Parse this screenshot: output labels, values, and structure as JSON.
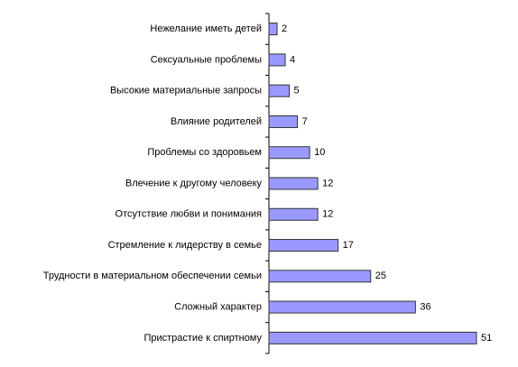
{
  "chart_data": {
    "type": "bar",
    "orientation": "horizontal",
    "categories": [
      "Нежелание иметь детей",
      "Сексуальные проблемы",
      "Высокие материальные запросы",
      "Влияние родителей",
      "Проблемы со здоровьем",
      "Влечение к другому человеку",
      "Отсутствие любви и понимания",
      "Стремление к лидерству в семье",
      "Трудности в материальном обеспечении семьи",
      "Сложный характер",
      "Пристрастие к спиртному"
    ],
    "values": [
      2,
      4,
      5,
      7,
      10,
      12,
      12,
      17,
      25,
      36,
      51
    ],
    "color": "#9999ff"
  }
}
